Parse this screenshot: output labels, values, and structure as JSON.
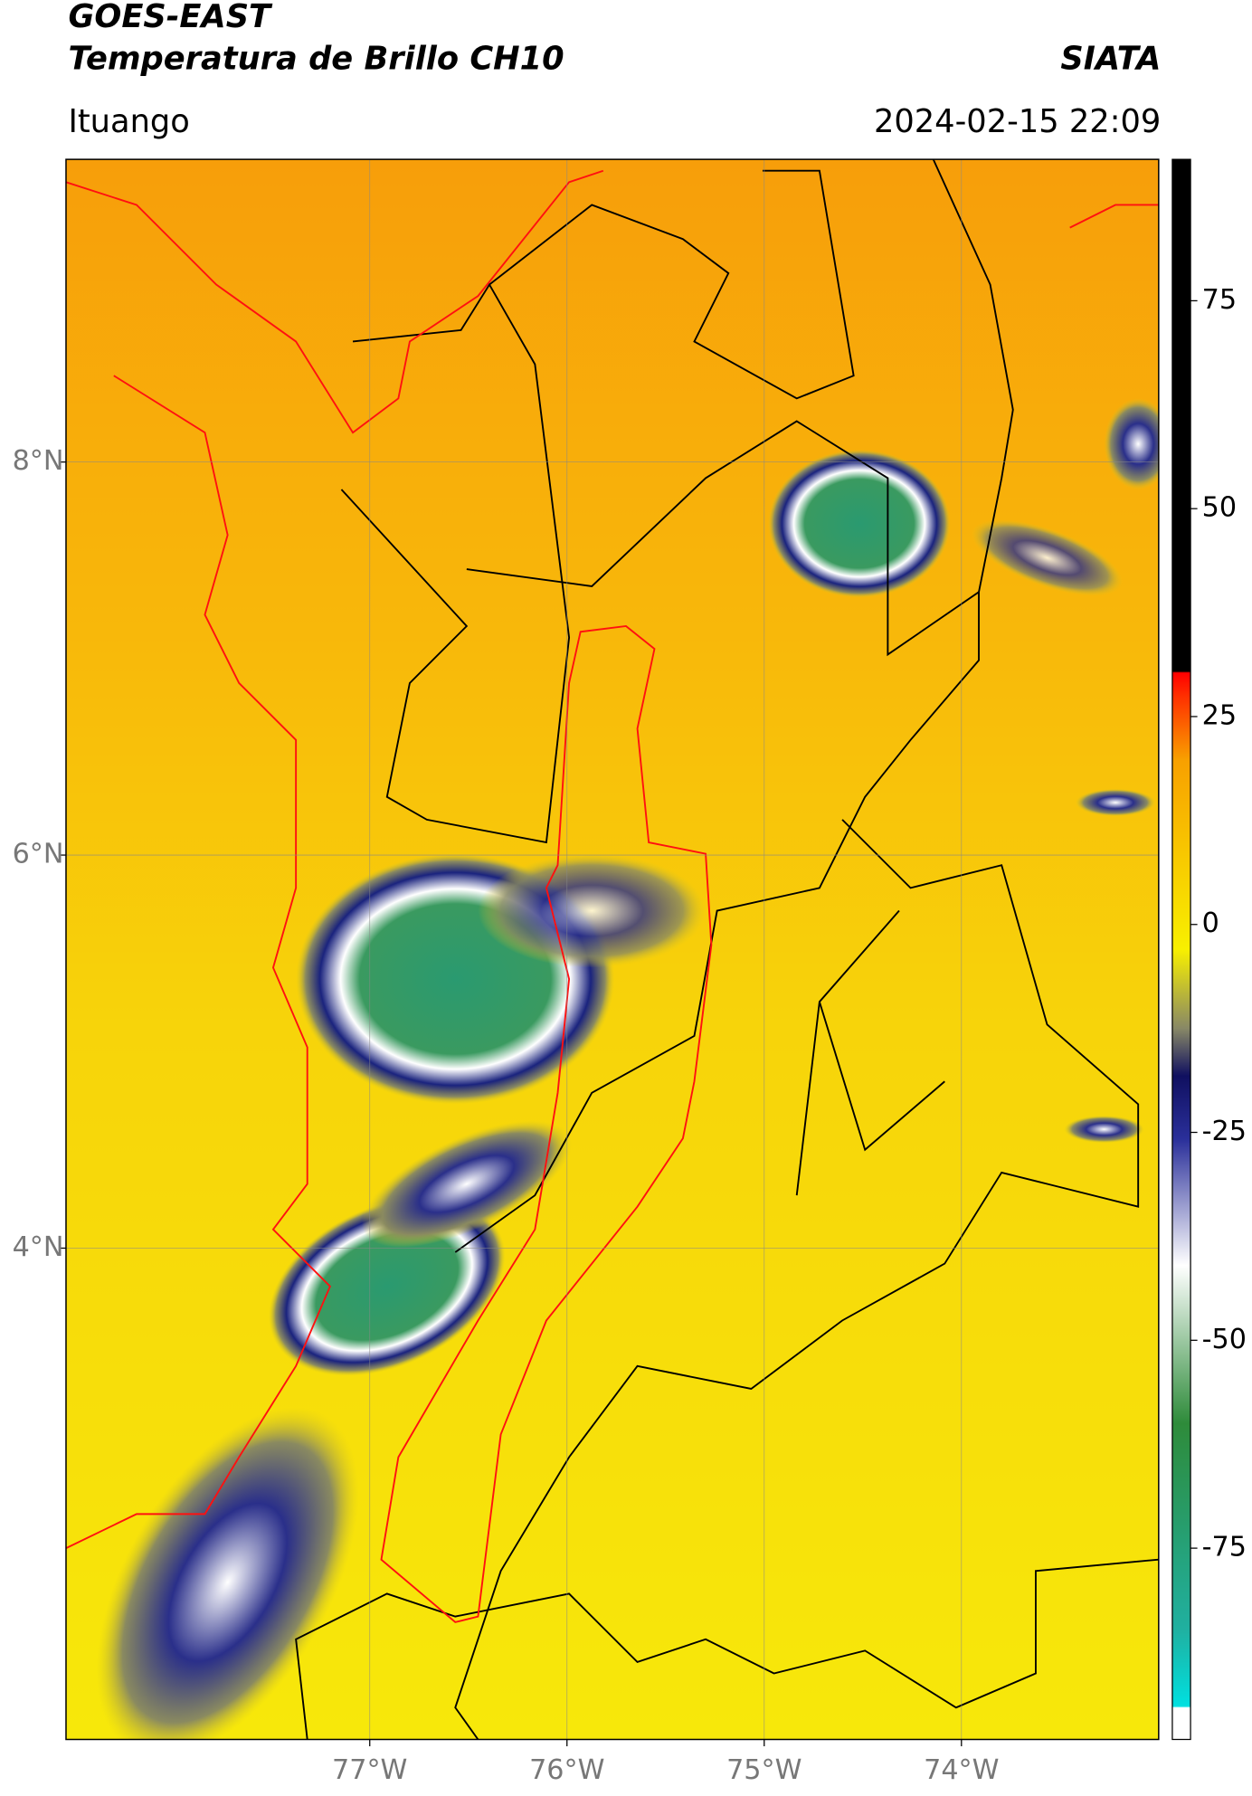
{
  "header": {
    "title": "GOES-EAST",
    "subtitle": "Temperatura de Brillo CH10",
    "brand": "SIATA",
    "location": "Ituango",
    "datetime": "2024-02-15 22:09"
  },
  "map": {
    "xlim": [
      -78.54,
      -73.0
    ],
    "ylim": [
      1.5,
      9.54
    ],
    "xticks": [
      {
        "value": -77,
        "label": "77°W"
      },
      {
        "value": -76,
        "label": "76°W"
      },
      {
        "value": -75,
        "label": "75°W"
      },
      {
        "value": -74,
        "label": "74°W"
      }
    ],
    "yticks": [
      {
        "value": 8,
        "label": "8°N"
      },
      {
        "value": 6,
        "label": "6°N"
      },
      {
        "value": 4,
        "label": "4°N"
      }
    ],
    "grid": true
  },
  "colorbar": {
    "lim": [
      -98,
      92
    ],
    "ticks": [
      75,
      50,
      25,
      0,
      -25,
      -50,
      -75
    ]
  }
}
